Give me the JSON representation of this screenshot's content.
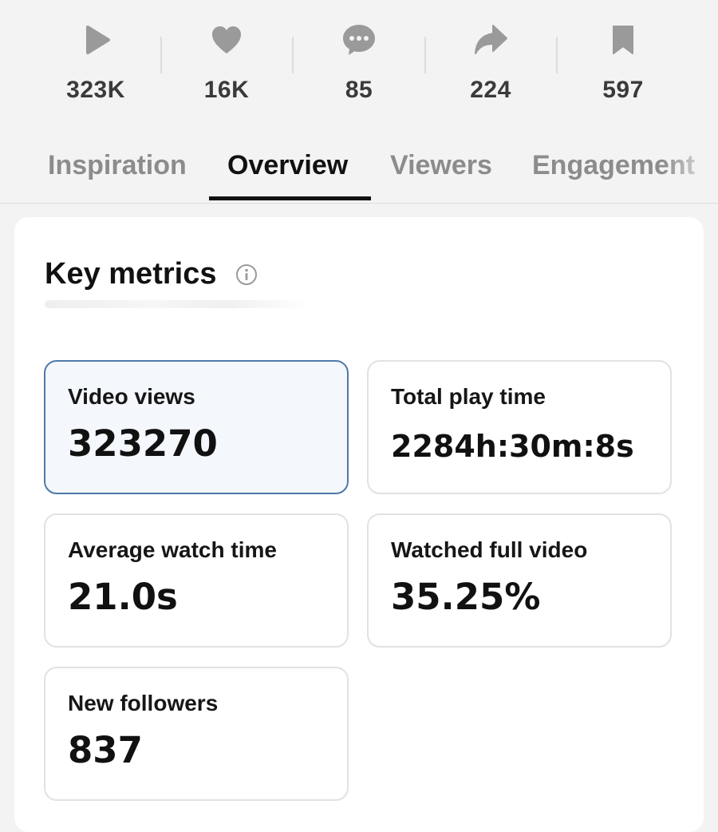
{
  "stats": [
    {
      "icon": "play-icon",
      "value": "323K"
    },
    {
      "icon": "heart-icon",
      "value": "16K"
    },
    {
      "icon": "comment-icon",
      "value": "85"
    },
    {
      "icon": "share-icon",
      "value": "224"
    },
    {
      "icon": "bookmark-icon",
      "value": "597"
    }
  ],
  "tabs": [
    {
      "label": "Inspiration",
      "active": false
    },
    {
      "label": "Overview",
      "active": true
    },
    {
      "label": "Viewers",
      "active": false
    },
    {
      "label": "Engagement",
      "active": false
    }
  ],
  "key_metrics": {
    "title": "Key metrics",
    "info_icon": "info-icon",
    "metrics": [
      {
        "label": "Video views",
        "value": "323270",
        "selected": true
      },
      {
        "label": "Total play time",
        "value": "2284h:30m:8s",
        "selected": false
      },
      {
        "label": "Average watch time",
        "value": "21.0s",
        "selected": false
      },
      {
        "label": "Watched full video",
        "value": "35.25%",
        "selected": false
      },
      {
        "label": "New followers",
        "value": "837",
        "selected": false
      }
    ]
  },
  "colors": {
    "background": "#f3f3f3",
    "card": "#ffffff",
    "icon_gray": "#9a9a9a",
    "stat_text": "#3a3a3a",
    "inactive_tab": "#8c8c8c",
    "active_tab": "#111111",
    "selected_metric_border": "#4f79a8",
    "selected_metric_bg": "#f4f7fc"
  }
}
